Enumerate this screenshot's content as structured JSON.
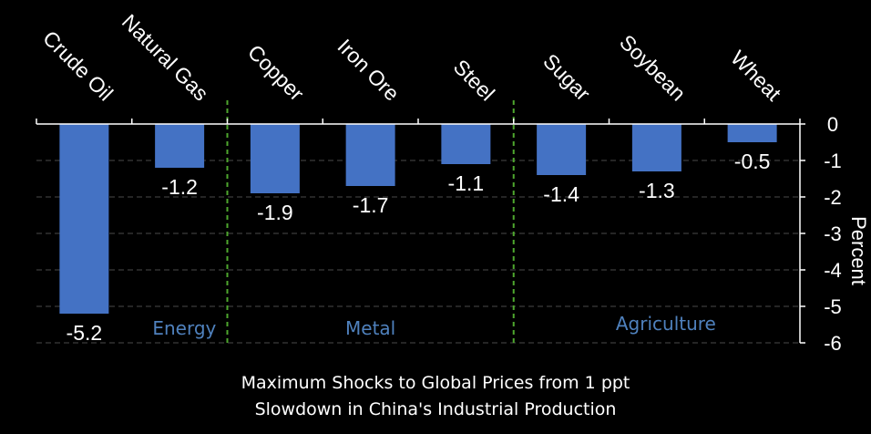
{
  "chart_data": {
    "type": "bar",
    "categories": [
      "Crude Oil",
      "Natural Gas",
      "Copper",
      "Iron Ore",
      "Steel",
      "Sugar",
      "Soybean",
      "Wheat"
    ],
    "values": [
      -5.2,
      -1.2,
      -1.9,
      -1.7,
      -1.1,
      -1.4,
      -1.3,
      -0.5
    ],
    "value_labels": [
      "-5.2",
      "-1.2",
      "-1.9",
      "-1.7",
      "-1.1",
      "-1.4",
      "-1.3",
      "-0.5"
    ],
    "groups": [
      {
        "name": "Energy",
        "categories": [
          "Crude Oil",
          "Natural Gas"
        ]
      },
      {
        "name": "Metal",
        "categories": [
          "Copper",
          "Iron Ore",
          "Steel"
        ]
      },
      {
        "name": "Agriculture",
        "categories": [
          "Sugar",
          "Soybean",
          "Wheat"
        ]
      }
    ],
    "ylabel": "Percent",
    "ylim": [
      -6,
      0
    ],
    "yticks": [
      "0",
      "-1",
      "-2",
      "-3",
      "-4",
      "-5",
      "-6"
    ],
    "y_axis_side": "right",
    "category_labels_position": "top, rotated",
    "gridlines": "dashed horizontal",
    "colors": {
      "bar": "#4472c4",
      "group_label": "#4f81bd",
      "separator": "#4ea72e",
      "grid": "#4a4a4a",
      "axis": "#ffffff"
    },
    "caption": [
      "Maximum Shocks to Global Prices from 1 ppt",
      "Slowdown in China's Industrial Production"
    ]
  }
}
